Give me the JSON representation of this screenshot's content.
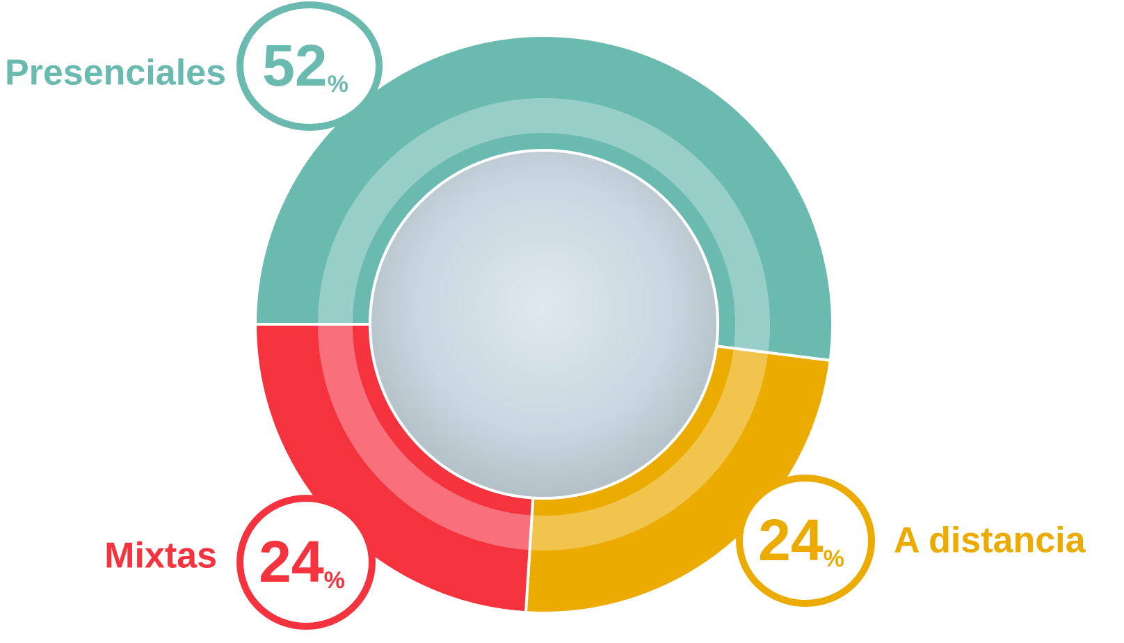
{
  "chart_data": {
    "type": "donut",
    "categories": [
      "Presenciales",
      "A distancia",
      "Mixtas"
    ],
    "values": [
      52,
      24,
      24
    ],
    "unit": "%",
    "colors": [
      "#6bbab0",
      "#ebab00",
      "#f5333f"
    ]
  }
}
